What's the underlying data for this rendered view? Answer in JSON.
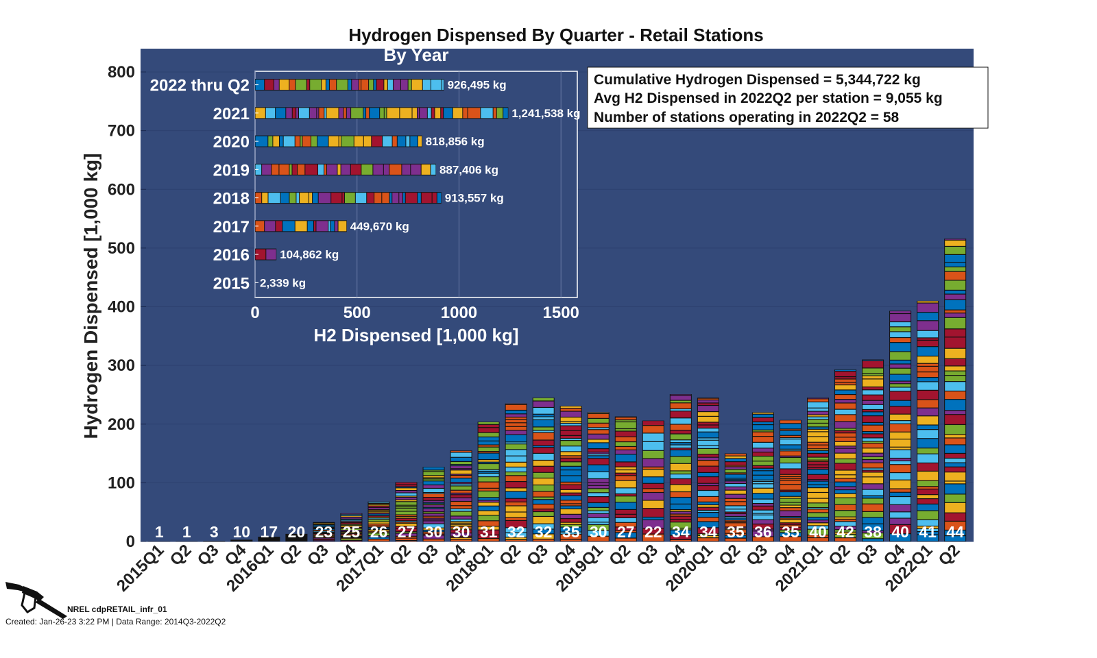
{
  "chart_data": [
    {
      "type": "bar",
      "stacked": true,
      "title": "Hydrogen Dispensed By Quarter - Retail Stations",
      "ylabel": "Hydrogen Dispensed [1,000 kg]",
      "xlabel": "",
      "ylim": [
        0,
        800
      ],
      "yticks": [
        "0",
        "100",
        "200",
        "300",
        "400",
        "500",
        "600",
        "700",
        "800"
      ],
      "grid": true,
      "categories": [
        "2015Q1",
        "Q2",
        "Q3",
        "Q4",
        "2016Q1",
        "Q2",
        "Q3",
        "Q4",
        "2017Q1",
        "Q2",
        "Q3",
        "Q4",
        "2018Q1",
        "Q2",
        "Q3",
        "Q4",
        "2019Q1",
        "Q2",
        "Q3",
        "Q4",
        "2020Q1",
        "Q2",
        "Q3",
        "Q4",
        "2021Q1",
        "Q2",
        "Q3",
        "Q4",
        "2022Q1",
        "Q2"
      ],
      "values": [
        0.5,
        0.5,
        1,
        3,
        8,
        13,
        33,
        48,
        68,
        101,
        127,
        155,
        204,
        235,
        245,
        231,
        220,
        213,
        206,
        251,
        245,
        150,
        220,
        207,
        245,
        293,
        310,
        393,
        410,
        516
      ],
      "station_counts": [
        "1",
        "1",
        "3",
        "10",
        "17",
        "20",
        "23",
        "25",
        "26",
        "27",
        "30",
        "30",
        "31",
        "32",
        "32",
        "35",
        "30",
        "27",
        "22",
        "34",
        "34",
        "35",
        "36",
        "35",
        "40",
        "42",
        "38",
        "40",
        "41",
        "44"
      ],
      "segment_colors": [
        "#0072BD",
        "#D95319",
        "#EDB120",
        "#7E2F8E",
        "#77AC30",
        "#4DBEEE",
        "#A2142F"
      ],
      "background": "#344a7a"
    },
    {
      "type": "bar",
      "orientation": "horizontal",
      "title": "By Year",
      "xlabel": "H2 Dispensed [1,000 kg]",
      "xlim": [
        0,
        1580
      ],
      "xticks": [
        "0",
        "500",
        "1000",
        "1500"
      ],
      "categories": [
        "2022 thru Q2",
        "2021",
        "2020",
        "2019",
        "2018",
        "2017",
        "2016",
        "2015"
      ],
      "values": [
        926.495,
        1241.538,
        818.856,
        887.406,
        913.557,
        449.67,
        104.862,
        2.339
      ],
      "labels": [
        "926,495 kg",
        "1,241,538 kg",
        "818,856 kg",
        "887,406 kg",
        "913,557 kg",
        "449,670 kg",
        "104,862 kg",
        "2,339 kg"
      ]
    }
  ],
  "stats_box": {
    "line1": "Cumulative Hydrogen Dispensed = 5,344,722 kg",
    "line2": "Avg H2 Dispensed in 2022Q2 per station = 9,055 kg",
    "line3": "Number of stations operating in 2022Q2 = 58"
  },
  "footer": {
    "logo_icon": "fuel-nozzle-icon",
    "id": "NREL cdpRETAIL_infr_01",
    "created": "Created: Jan-26-23  3:22 PM | Data Range: 2014Q3-2022Q2"
  }
}
